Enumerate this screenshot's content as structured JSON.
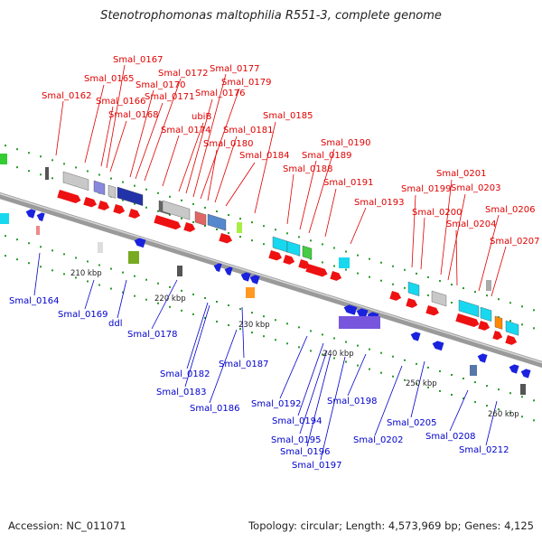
{
  "title": "Stenotrophomonas maltophilia R551-3, complete genome",
  "footer": {
    "accession": "Accession: NC_011071",
    "topology": "Topology: circular; Length: 4,573,969 bp; Genes: 4,125"
  },
  "kbp_markers": [
    "210 kbp",
    "220 kbp",
    "230 kbp",
    "240 kbp",
    "250 kbp",
    "260 kbp"
  ],
  "top_labels": [
    "Smal_0162",
    "Smal_0165",
    "Smal_0166",
    "Smal_0167",
    "Smal_0168",
    "Smal_0170",
    "Smal_0171",
    "Smal_0172",
    "Smal_0174",
    "ubiB",
    "Smal_0176",
    "Smal_0177",
    "Smal_0179",
    "Smal_0180",
    "Smal_0181",
    "Smal_0184",
    "Smal_0185",
    "Smal_0188",
    "Smal_0189",
    "Smal_0190",
    "Smal_0191",
    "Smal_0193",
    "Smal_0199",
    "Smal_0200",
    "Smal_0201",
    "Smal_0203",
    "Smal_0204",
    "Smal_0206",
    "Smal_0207"
  ],
  "bottom_labels": [
    "Smal_0164",
    "Smal_0169",
    "ddl",
    "Smal_0178",
    "Smal_0182",
    "Smal_0183",
    "Smal_0186",
    "Smal_0187",
    "Smal_0192",
    "Smal_0194",
    "Smal_0195",
    "Smal_0196",
    "Smal_0197",
    "Smal_0198",
    "Smal_0202",
    "Smal_0205",
    "Smal_0208",
    "Smal_0212"
  ],
  "colors": {
    "forward_label": "#e00000",
    "reverse_label": "#0000cc",
    "backbone": "#8a8a8a"
  }
}
